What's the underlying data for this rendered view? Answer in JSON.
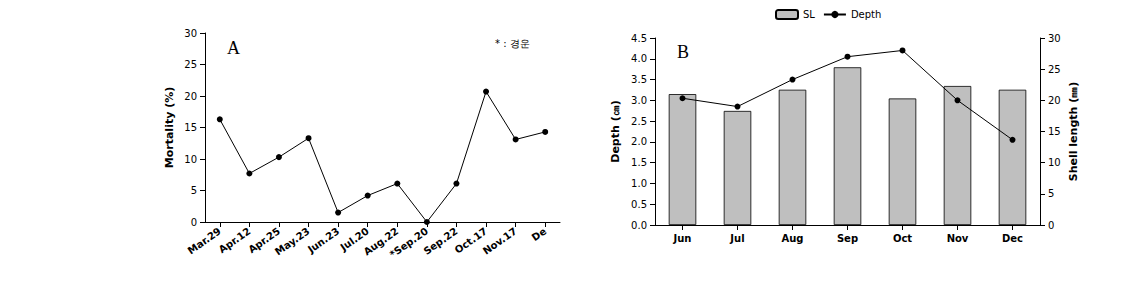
{
  "chart_data": [
    {
      "type": "line",
      "title": "A",
      "annotations": [
        "* : 경운"
      ],
      "ylabel": "Mortality (%)",
      "categories": [
        "Mar.29",
        "Apr.12",
        "Apr.25",
        "May.23",
        "Jun.23",
        "Jul.20",
        "Aug.22",
        "*Sep.20",
        "Sep.22",
        "Oct.17",
        "Nov.17",
        "De"
      ],
      "values": [
        16.3,
        7.7,
        10.3,
        13.3,
        1.5,
        4.2,
        6.1,
        0,
        6.1,
        20.7,
        13.1,
        14.3
      ],
      "color": "#000000",
      "marker": "circle",
      "ylim": [
        0,
        30
      ],
      "yticks": [
        0,
        5,
        10,
        15,
        20,
        25,
        30
      ],
      "grid": false
    },
    {
      "type": "bar",
      "title": "B",
      "legend": "top",
      "ylabel": "Depth (㎝)",
      "y2label": "Shell length (㎜)",
      "categories": [
        "Jun",
        "Jul",
        "Aug",
        "Sep",
        "Oct",
        "Nov",
        "Dec"
      ],
      "series": [
        {
          "name": "SL",
          "type": "bar",
          "axis": "y2",
          "color": "#bfbfbf",
          "values": [
            21.0,
            18.3,
            21.7,
            25.3,
            20.3,
            22.3,
            21.7
          ]
        },
        {
          "name": "Depth",
          "type": "line",
          "color": "#000000",
          "marker": "circle",
          "values": [
            3.05,
            2.85,
            3.5,
            4.05,
            4.2,
            3.0,
            2.05
          ]
        }
      ],
      "ylim": [
        0,
        4.5
      ],
      "yticks": [
        {
          "value": 0,
          "label": "0.0"
        },
        0.5,
        {
          "value": 1,
          "label": "1.0"
        },
        1.5,
        {
          "value": 2,
          "label": "2.0"
        },
        2.5,
        {
          "value": 3,
          "label": "3.0"
        },
        3.5,
        {
          "value": 4,
          "label": "4.0"
        },
        4.5
      ],
      "y2lim": [
        0,
        30
      ],
      "y2ticks": [
        0,
        5,
        10,
        15,
        20,
        25,
        30
      ],
      "grid": false
    }
  ]
}
